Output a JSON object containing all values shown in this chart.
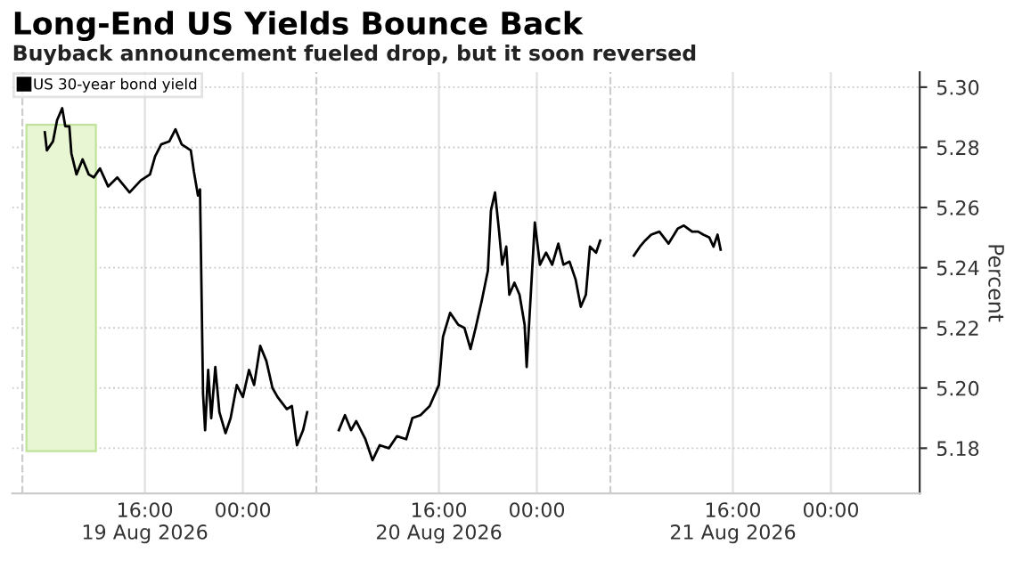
{
  "chart_data": {
    "type": "line",
    "title": "Long-End US Yields Bounce Back",
    "subtitle": "Buyback announcement fueled drop, but it soon reversed",
    "ylabel": "Percent",
    "x": [
      "2026-08-19T07:50",
      "2026-08-19T08:00",
      "2026-08-19T08:30",
      "2026-08-19T08:50",
      "2026-08-19T09:15",
      "2026-08-19T09:30",
      "2026-08-19T09:50",
      "2026-08-19T10:00",
      "2026-08-19T10:25",
      "2026-08-19T10:55",
      "2026-08-19T11:25",
      "2026-08-19T11:50",
      "2026-08-19T12:20",
      "2026-08-19T13:00",
      "2026-08-19T13:45",
      "2026-08-19T14:45",
      "2026-08-19T15:40",
      "2026-08-19T16:25",
      "2026-08-19T16:50",
      "2026-08-19T17:20",
      "2026-08-19T18:00",
      "2026-08-19T18:30",
      "2026-08-19T19:00",
      "2026-08-19T19:45",
      "2026-08-19T20:00",
      "2026-08-19T20:20",
      "2026-08-19T20:30",
      "2026-08-19T20:45",
      "2026-08-19T20:55",
      "2026-08-19T21:10",
      "2026-08-19T21:25",
      "2026-08-19T21:45",
      "2026-08-19T22:05",
      "2026-08-19T22:35",
      "2026-08-19T23:00",
      "2026-08-19T23:30",
      "2026-08-20T00:00",
      "2026-08-20T00:30",
      "2026-08-20T00:55",
      "2026-08-20T01:25",
      "2026-08-20T01:55",
      "2026-08-20T02:25",
      "2026-08-20T02:50",
      "2026-08-20T03:35",
      "2026-08-20T04:00",
      "2026-08-20T04:25",
      "2026-08-20T04:55",
      "2026-08-20T05:15",
      "2026-08-20T06:00",
      "2026-08-20T07:50",
      "2026-08-20T08:20",
      "2026-08-20T08:50",
      "2026-08-20T09:15",
      "2026-08-20T10:00",
      "2026-08-20T10:35",
      "2026-08-20T11:10",
      "2026-08-20T11:55",
      "2026-08-20T12:35",
      "2026-08-20T13:20",
      "2026-08-20T13:50",
      "2026-08-20T14:30",
      "2026-08-20T15:15",
      "2026-08-20T16:00",
      "2026-08-20T16:20",
      "2026-08-20T16:55",
      "2026-08-20T17:35",
      "2026-08-20T18:05",
      "2026-08-20T18:35",
      "2026-08-20T19:00",
      "2026-08-20T19:30",
      "2026-08-20T20:00",
      "2026-08-20T20:15",
      "2026-08-20T20:35",
      "2026-08-20T20:55",
      "2026-08-20T21:10",
      "2026-08-20T21:30",
      "2026-08-20T21:45",
      "2026-08-20T22:10",
      "2026-08-20T22:35",
      "2026-08-20T23:00",
      "2026-08-20T23:10",
      "2026-08-20T23:30",
      "2026-08-20T23:50",
      "2026-08-21T00:15",
      "2026-08-21T00:45",
      "2026-08-21T01:15",
      "2026-08-21T01:45",
      "2026-08-21T02:10",
      "2026-08-21T02:40",
      "2026-08-21T03:10",
      "2026-08-21T03:35",
      "2026-08-21T04:00",
      "2026-08-21T04:20",
      "2026-08-21T04:50",
      "2026-08-21T05:10",
      "2026-08-21T06:00",
      "2026-08-21T07:55",
      "2026-08-21T08:25",
      "2026-08-21T08:50",
      "2026-08-21T09:20",
      "2026-08-21T10:00",
      "2026-08-21T10:45",
      "2026-08-21T11:30",
      "2026-08-21T12:00",
      "2026-08-21T12:40",
      "2026-08-21T13:10",
      "2026-08-21T13:35",
      "2026-08-21T14:05",
      "2026-08-21T14:25",
      "2026-08-21T14:45",
      "2026-08-21T15:00"
    ],
    "series": [
      {
        "name": "US 30-year bond yield",
        "color": "#000000",
        "values": [
          5.285,
          5.279,
          5.282,
          5.289,
          5.293,
          5.287,
          5.287,
          5.278,
          5.271,
          5.276,
          5.271,
          5.27,
          5.273,
          5.267,
          5.27,
          5.265,
          5.269,
          5.271,
          5.277,
          5.281,
          5.282,
          5.286,
          5.281,
          5.279,
          5.272,
          5.264,
          5.266,
          5.198,
          5.186,
          5.206,
          5.19,
          5.207,
          5.192,
          5.185,
          5.19,
          5.201,
          5.197,
          5.206,
          5.201,
          5.214,
          5.209,
          5.2,
          5.197,
          5.193,
          5.194,
          5.181,
          5.186,
          5.192,
          null,
          5.186,
          5.191,
          5.186,
          5.189,
          5.183,
          5.176,
          5.181,
          5.18,
          5.184,
          5.183,
          5.19,
          5.191,
          5.194,
          5.201,
          5.217,
          5.225,
          5.221,
          5.22,
          5.213,
          5.22,
          5.229,
          5.239,
          5.259,
          5.265,
          5.252,
          5.241,
          5.247,
          5.231,
          5.235,
          5.231,
          5.221,
          5.207,
          5.231,
          5.255,
          5.241,
          5.245,
          5.241,
          5.248,
          5.241,
          5.242,
          5.236,
          5.227,
          5.231,
          5.247,
          5.245,
          5.249,
          null,
          5.244,
          5.247,
          5.249,
          5.251,
          5.252,
          5.248,
          5.253,
          5.254,
          5.252,
          5.252,
          5.251,
          5.25,
          5.247,
          5.251,
          5.246
        ]
      }
    ],
    "xlim": [
      "2026-08-19T05:10",
      "2026-08-22T07:15"
    ],
    "xticks": [
      {
        "value": "2026-08-19T16:00",
        "label": "16:00\n19 Aug 2026"
      },
      {
        "value": "2026-08-20T00:00",
        "label": "00:00"
      },
      {
        "value": "2026-08-20T16:00",
        "label": "16:00\n20 Aug 2026"
      },
      {
        "value": "2026-08-21T00:00",
        "label": "00:00"
      },
      {
        "value": "2026-08-21T16:00",
        "label": "16:00\n21 Aug 2026"
      },
      {
        "value": "2026-08-22T00:00",
        "label": "00:00"
      }
    ],
    "ylim": [
      5.165,
      5.305
    ],
    "yticks": [
      {
        "value": 5.18,
        "label": "5.18"
      },
      {
        "value": 5.2,
        "label": "5.20"
      },
      {
        "value": 5.22,
        "label": "5.22"
      },
      {
        "value": 5.24,
        "label": "5.24"
      },
      {
        "value": 5.26,
        "label": "5.26"
      },
      {
        "value": 5.28,
        "label": "5.28"
      },
      {
        "value": 5.3,
        "label": "5.30"
      }
    ],
    "ref_lines": [
      {
        "axis": "x",
        "value": "2026-08-19T06:00",
        "line_style": "dashed",
        "color": "#cccccc"
      },
      {
        "axis": "x",
        "value": "2026-08-20T06:00",
        "line_style": "dashed",
        "color": "#cccccc"
      },
      {
        "axis": "x",
        "value": "2026-08-21T06:00",
        "line_style": "dashed",
        "color": "#cccccc"
      }
    ],
    "bands": [
      {
        "axis": "x",
        "from": "2026-08-19T06:20",
        "to": "2026-08-19T12:00",
        "color": "#e8f6d4"
      }
    ],
    "grid": true,
    "legend": "top left",
    "line_style": "solid",
    "marker": "none"
  }
}
